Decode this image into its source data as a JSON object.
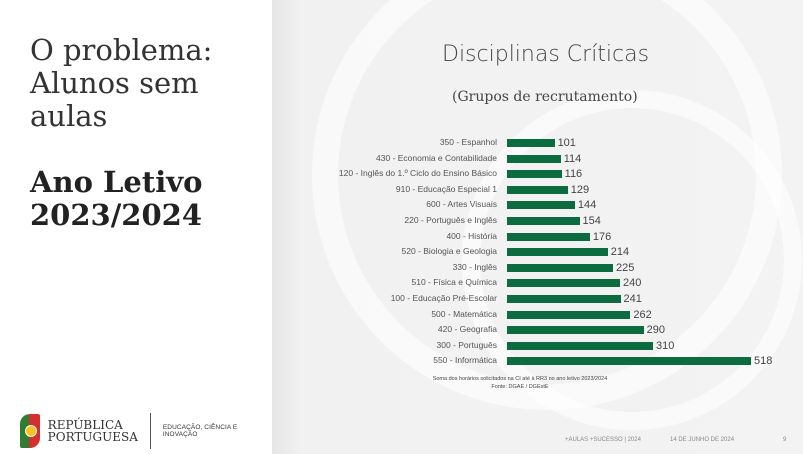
{
  "left": {
    "title_lines": [
      "O problema:",
      "Alunos sem",
      "aulas"
    ],
    "year_lines": [
      "Ano Letivo",
      "2023/2024"
    ]
  },
  "logo": {
    "line1": "REPÚBLICA",
    "line2": "PORTUGUESA",
    "ministry": "EDUCAÇÃO, CIÊNCIA E INOVAÇÃO"
  },
  "chart_data": {
    "type": "bar",
    "orientation": "horizontal",
    "title": "Disciplinas Críticas",
    "subtitle": "(Grupos de recrutamento)",
    "categories": [
      "350 - Espanhol",
      "430 - Economia e Contabilidade",
      "120 - Inglês do 1.º Ciclo do Ensino Básico",
      "910 - Educação Especial 1",
      "600 - Artes Visuais",
      "220 - Português e Inglês",
      "400 - História",
      "520 - Biologia e Geologia",
      "330 - Inglês",
      "510 - Física e Química",
      "100 - Educação Pré-Escolar",
      "500 - Matemática",
      "420 - Geografia",
      "300 - Português",
      "550 - Informática"
    ],
    "values": [
      101,
      114,
      116,
      129,
      144,
      154,
      176,
      214,
      225,
      240,
      241,
      262,
      290,
      310,
      518
    ],
    "color": "#0d6b40",
    "note": "Soma dos horários solicitados na CI até à RR3 no ano letivo 2023/2024",
    "source": "Fonte: DGAE / DGEstE"
  },
  "footer": {
    "event": "+AULAS +SUCESSO | 2024",
    "date": "14 DE JUNHO DE 2024",
    "page": "9"
  }
}
